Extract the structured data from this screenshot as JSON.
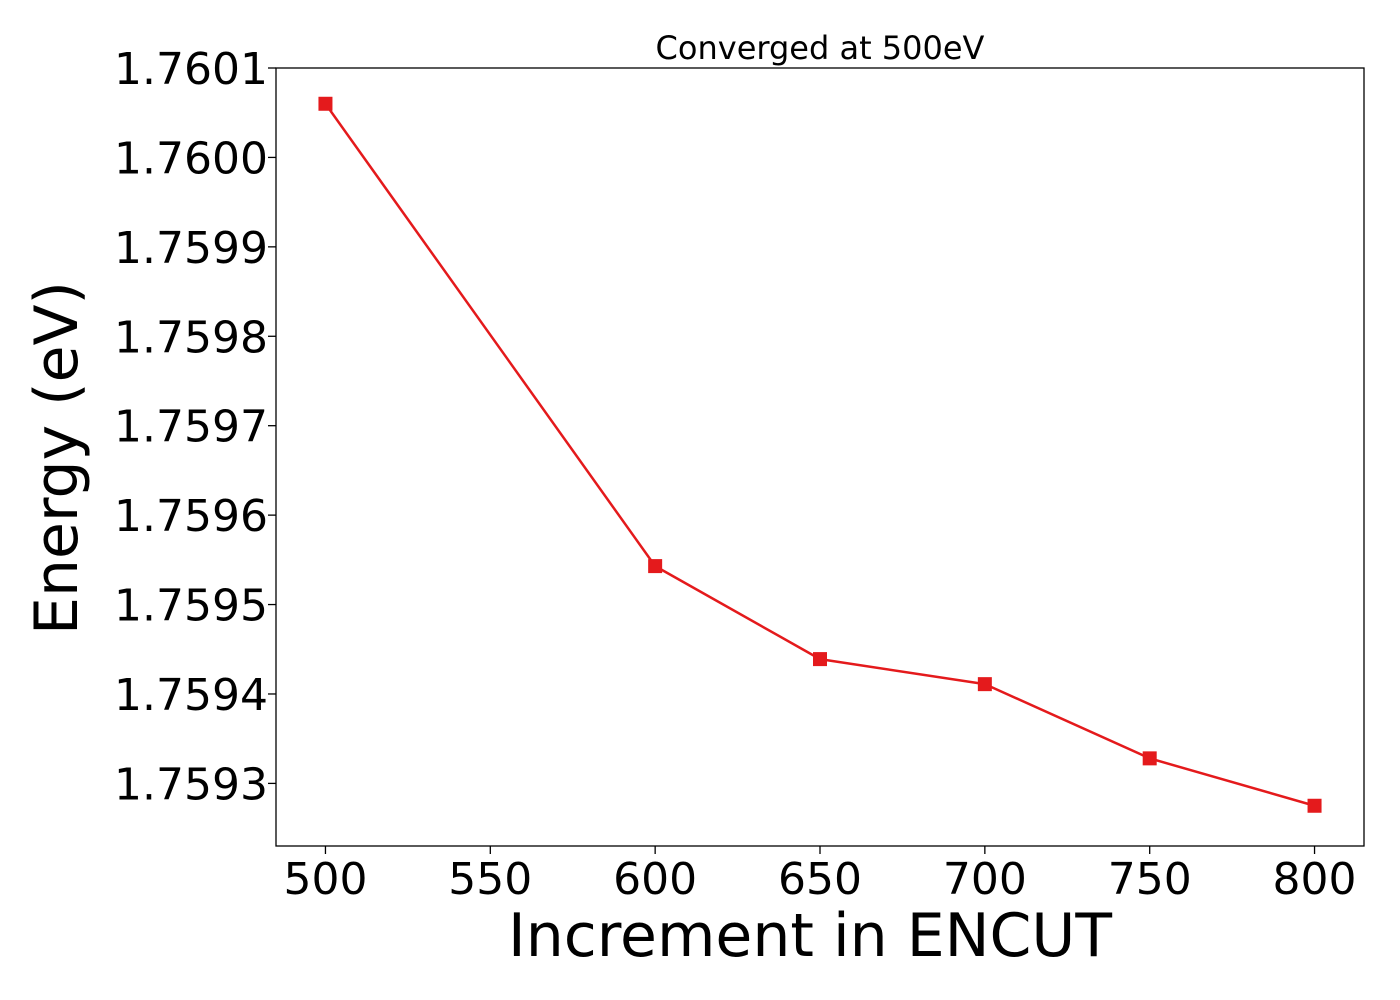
{
  "chart_data": {
    "type": "line",
    "title": "Converged at 500eV",
    "xlabel": "Increment in ENCUT",
    "ylabel": "Energy (eV)",
    "x": [
      500,
      600,
      650,
      700,
      750,
      800
    ],
    "series": [
      {
        "values": [
          1.76006,
          1.759543,
          1.759439,
          1.759411,
          1.759328,
          1.759275
        ],
        "color": "#e41a1c",
        "marker": "square"
      }
    ],
    "xlim": [
      485,
      815
    ],
    "ylim": [
      1.75923,
      1.7601
    ],
    "xticks": [
      500,
      550,
      600,
      650,
      700,
      750,
      800
    ],
    "yticks": [
      1.7593,
      1.7594,
      1.7595,
      1.7596,
      1.7597,
      1.7598,
      1.7599,
      1.76,
      1.7601
    ],
    "ytick_labels": [
      "1.7593",
      "1.7594",
      "1.7595",
      "1.7596",
      "1.7597",
      "1.7598",
      "1.7599",
      "1.7600",
      "1.7601"
    ],
    "grid": false,
    "legend": "none"
  }
}
